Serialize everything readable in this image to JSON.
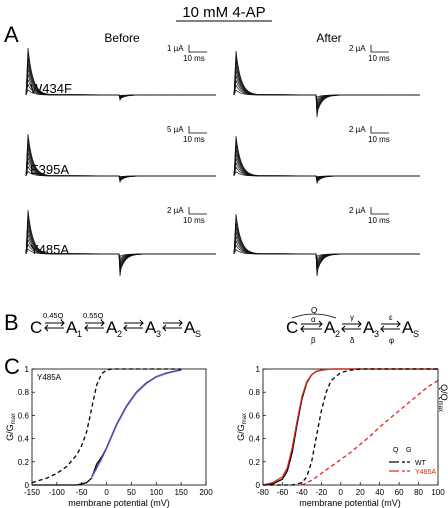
{
  "figure": {
    "title": "10 mM 4-AP",
    "panel_letters": {
      "a": "A",
      "b": "B",
      "c": "C"
    },
    "columns": {
      "before": "Before",
      "after": "After"
    },
    "rows": [
      {
        "label": "W434F",
        "before_scale": "1 µA",
        "after_scale": "2 µA"
      },
      {
        "label": "E395A",
        "before_scale": "5 µA",
        "after_scale": "2 µA"
      },
      {
        "label": "Y485A",
        "before_scale": "2 µA",
        "after_scale": "2 µA"
      }
    ],
    "time_scale": "10 ms"
  },
  "schemes": {
    "left": {
      "states": [
        "C",
        "A",
        "1",
        "A",
        "2",
        "A",
        "3",
        "A",
        "S"
      ],
      "rate_labels": [
        "0.45Q",
        "0.55Q"
      ]
    },
    "right": {
      "states": [
        "C",
        "A",
        "2",
        "A",
        "3",
        "A",
        "S"
      ],
      "rate_labels": {
        "q": "Q",
        "alpha": "α",
        "beta": "β",
        "gamma": "γ",
        "delta": "δ",
        "epsilon": "ε",
        "phi": "φ"
      }
    }
  },
  "chart_data": [
    {
      "type": "line",
      "panel_label": "Y485A",
      "xlabel": "membrane potential (mV)",
      "ylabel_main": "G/G",
      "ylabel_sub": "max",
      "xlim": [
        -150,
        200
      ],
      "ylim": [
        0,
        1
      ],
      "xticks": [
        "-150",
        "-100",
        "-50",
        "0",
        "50",
        "100",
        "150",
        "200"
      ],
      "yticks": [
        "0",
        "0.2",
        "0.4",
        "0.6",
        "0.8",
        "1"
      ],
      "series": [
        {
          "style": "dashed",
          "color": "#000000",
          "x": [
            -150,
            -120,
            -100,
            -80,
            -60,
            -50,
            -40,
            -30,
            -20,
            -10,
            0,
            10,
            20,
            50,
            100,
            150
          ],
          "y": [
            0.02,
            0.06,
            0.1,
            0.16,
            0.26,
            0.34,
            0.46,
            0.66,
            0.86,
            0.96,
            0.99,
            1.0,
            1.0,
            1.0,
            1.0,
            1.0
          ]
        },
        {
          "style": "solid",
          "color": "#000000",
          "x": [
            -150,
            -100,
            -60,
            -40,
            -30,
            -20,
            -10,
            0,
            10,
            20,
            40,
            60,
            80,
            100,
            120,
            140,
            150
          ],
          "y": [
            0.0,
            0.0,
            0.0,
            0.02,
            0.06,
            0.18,
            0.24,
            0.32,
            0.42,
            0.52,
            0.68,
            0.8,
            0.88,
            0.93,
            0.96,
            0.985,
            0.99
          ]
        },
        {
          "style": "solid",
          "color": "#d9a0a8",
          "x": [
            -30,
            -20,
            -10,
            0,
            10,
            20,
            40,
            60,
            80,
            100,
            120,
            140,
            150
          ],
          "y": [
            0.06,
            0.14,
            0.22,
            0.31,
            0.41,
            0.51,
            0.67,
            0.79,
            0.87,
            0.93,
            0.96,
            0.98,
            0.99
          ]
        },
        {
          "style": "solid",
          "color": "#4040c0",
          "x": [
            -30,
            -20,
            -10,
            0,
            10,
            20,
            40,
            60,
            80,
            100,
            120,
            140,
            150
          ],
          "y": [
            0.07,
            0.15,
            0.23,
            0.32,
            0.42,
            0.52,
            0.68,
            0.8,
            0.88,
            0.935,
            0.965,
            0.985,
            0.99
          ]
        }
      ]
    },
    {
      "type": "line",
      "xlabel": "membrane potential (mV)",
      "ylabel_main": "G/G",
      "ylabel_sub": "max",
      "ylabel_right_main": "Q/Q",
      "ylabel_right_sub": "max",
      "xlim": [
        -80,
        100
      ],
      "ylim": [
        0,
        1
      ],
      "xticks": [
        "-80",
        "-60",
        "-40",
        "-20",
        "0",
        "20",
        "40",
        "60",
        "80",
        "100"
      ],
      "yticks": [
        "0",
        "0.2",
        "0.4",
        "0.6",
        "0.8",
        "1"
      ],
      "legend": {
        "head_q": "Q",
        "head_g": "G",
        "wt": "WT",
        "mut": "Y485A",
        "placement": "bottom-right"
      },
      "series": [
        {
          "name": "WT",
          "style": "solid",
          "color": "#000000",
          "x": [
            -80,
            -70,
            -60,
            -55,
            -50,
            -45,
            -40,
            -35,
            -30,
            -25,
            -20,
            -10,
            0,
            100
          ],
          "y": [
            0.0,
            0.01,
            0.05,
            0.12,
            0.28,
            0.52,
            0.74,
            0.88,
            0.95,
            0.98,
            0.99,
            1.0,
            1.0,
            1.0
          ]
        },
        {
          "name": "Y485A",
          "style": "solid",
          "color": "#d42a1e",
          "x": [
            -80,
            -70,
            -60,
            -55,
            -50,
            -45,
            -40,
            -35,
            -30,
            -25,
            -20,
            -10,
            0,
            100
          ],
          "y": [
            0.0,
            0.02,
            0.07,
            0.15,
            0.32,
            0.55,
            0.76,
            0.89,
            0.95,
            0.98,
            0.99,
            1.0,
            1.0,
            1.0
          ]
        },
        {
          "name": "WT",
          "style": "dashed",
          "color": "#000000",
          "x": [
            -80,
            -50,
            -40,
            -35,
            -30,
            -25,
            -20,
            -15,
            -10,
            0,
            10,
            20,
            40,
            100
          ],
          "y": [
            0.0,
            0.0,
            0.02,
            0.07,
            0.2,
            0.42,
            0.64,
            0.8,
            0.9,
            0.97,
            0.99,
            1.0,
            1.0,
            1.0
          ]
        },
        {
          "name": "Y485A",
          "style": "dashed",
          "color": "#d42a1e",
          "x": [
            -40,
            -30,
            -20,
            -10,
            0,
            10,
            20,
            30,
            40,
            50,
            60,
            70,
            80,
            90,
            100
          ],
          "y": [
            0.0,
            0.04,
            0.1,
            0.16,
            0.22,
            0.28,
            0.35,
            0.42,
            0.5,
            0.57,
            0.64,
            0.71,
            0.78,
            0.85,
            0.9
          ]
        }
      ]
    }
  ]
}
